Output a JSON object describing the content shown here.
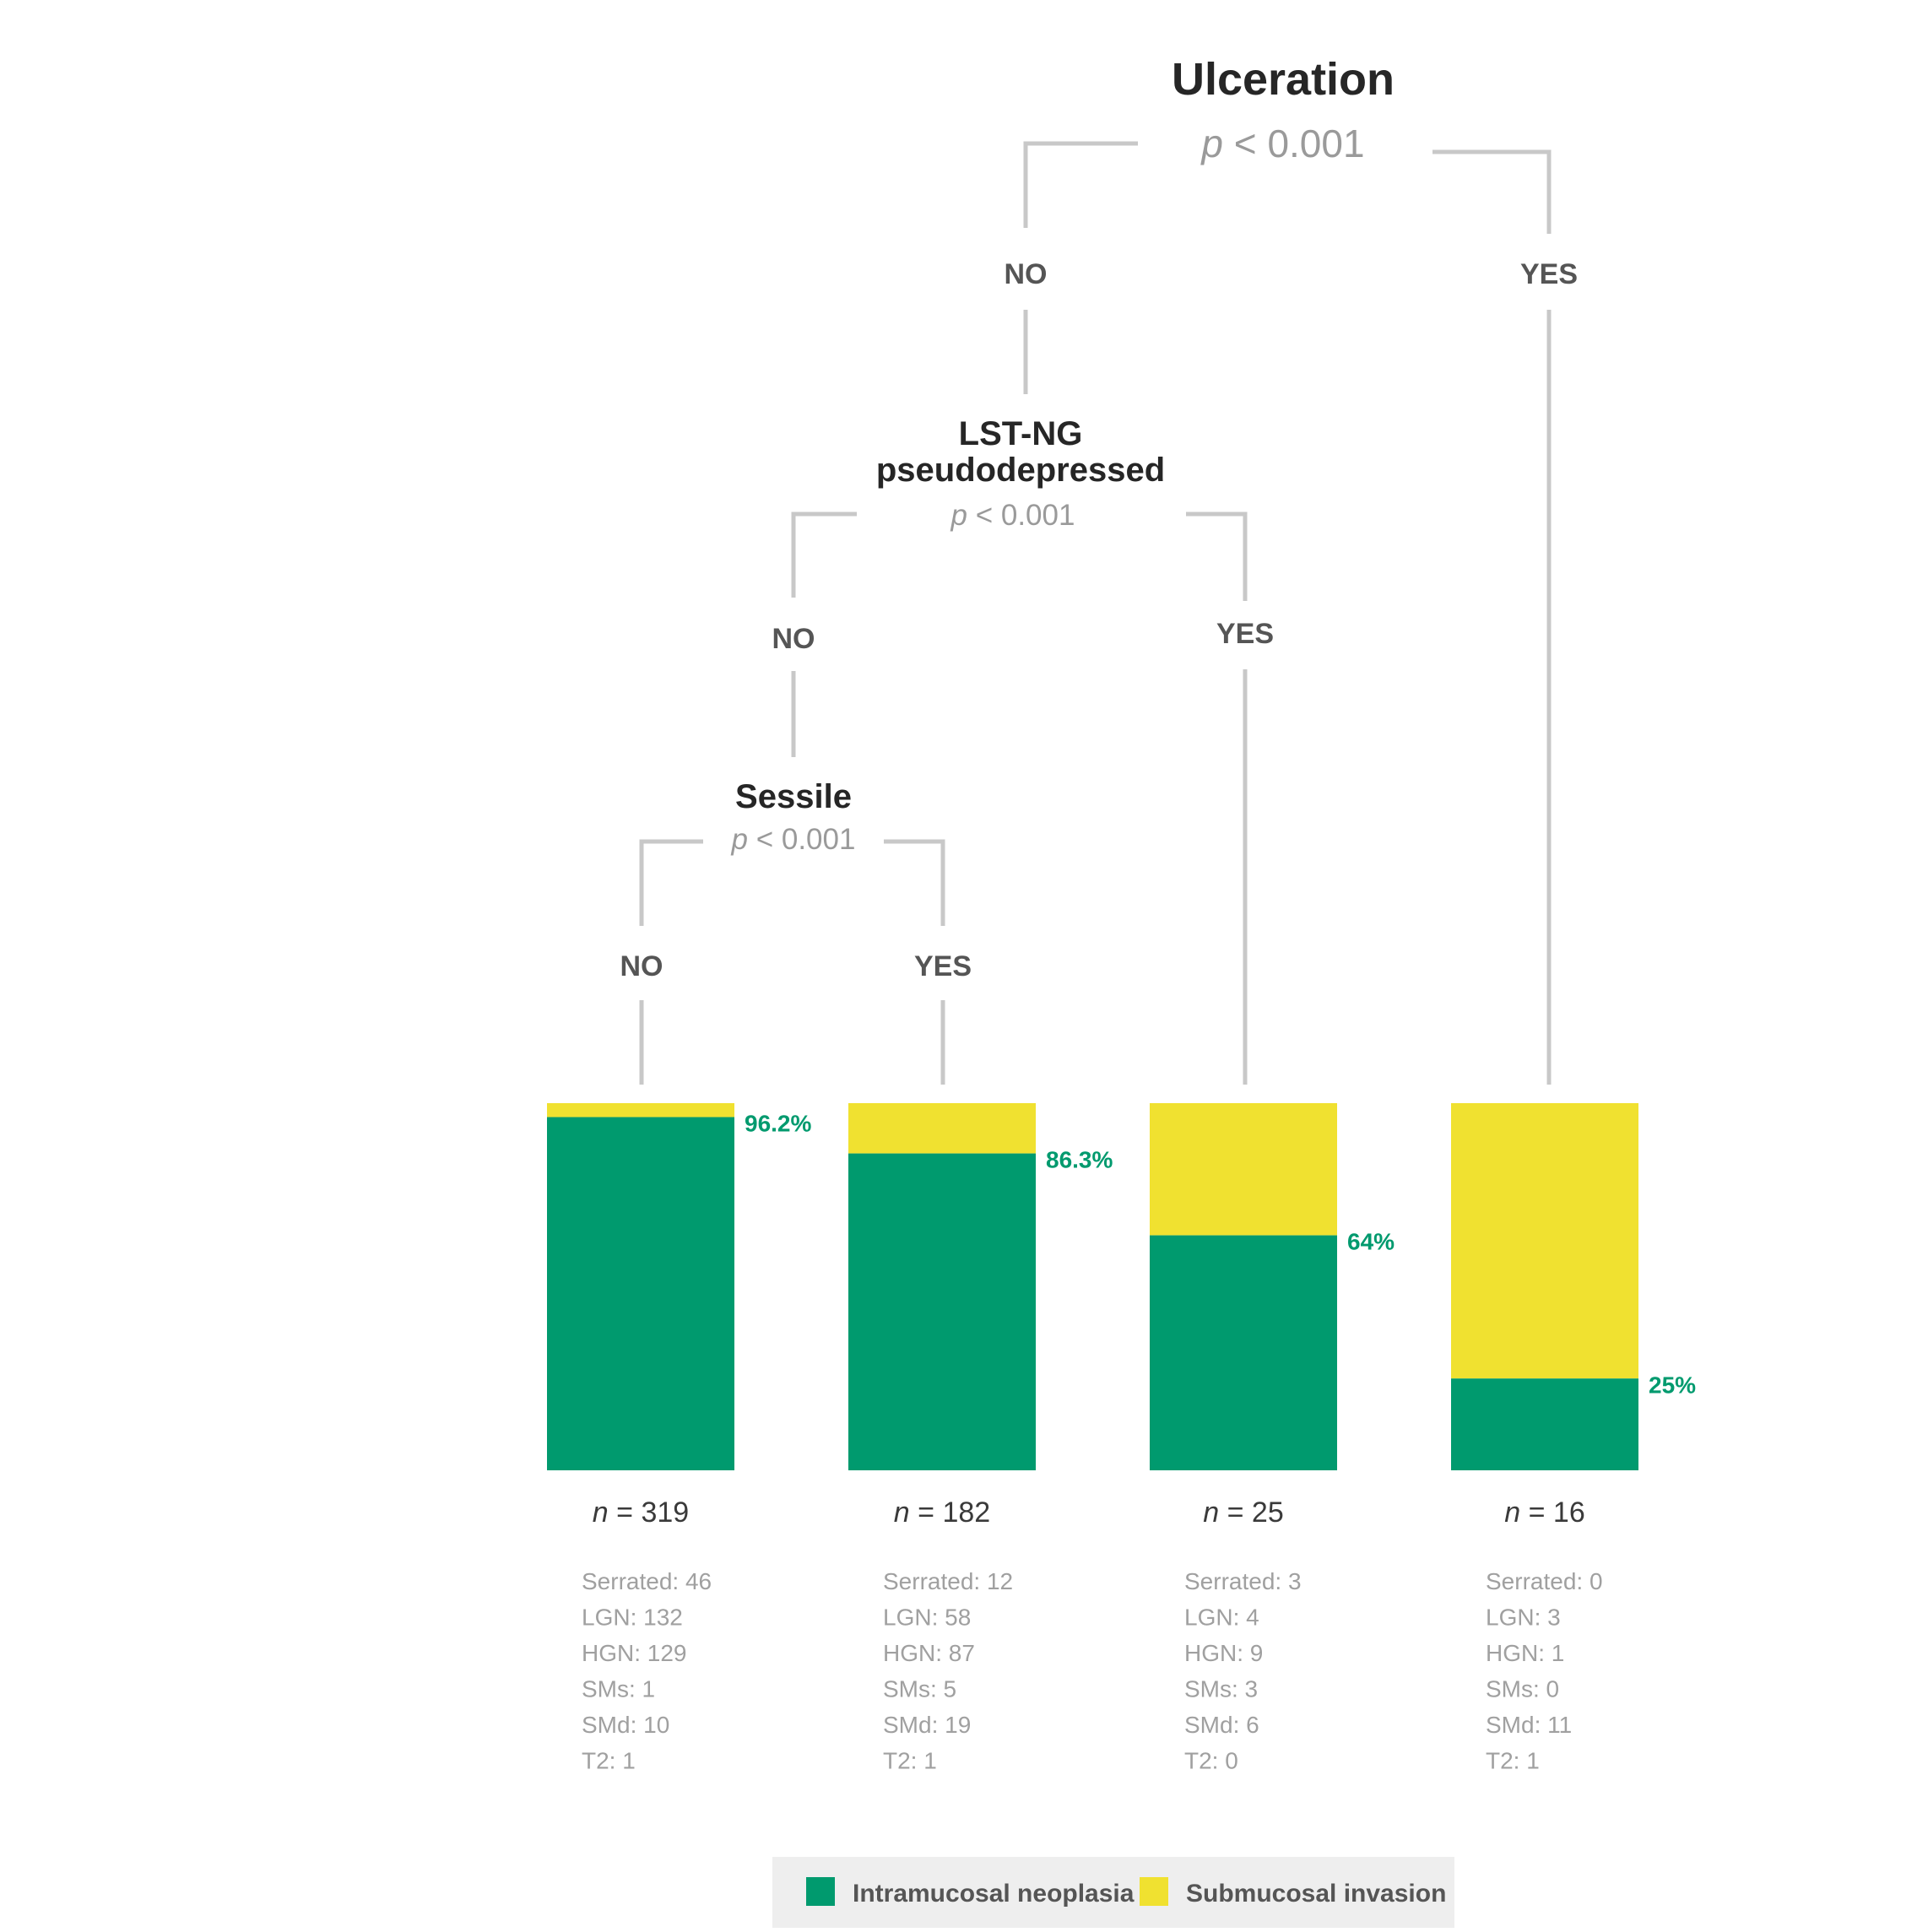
{
  "colors": {
    "intramucosal": "#009a6e",
    "submucosal": "#f0e130",
    "connector": "#c8c8c8",
    "legend_bg": "#eeeeee"
  },
  "tree": {
    "root": {
      "title": "Ulceration",
      "pvalue_italic": "p",
      "pvalue_rest": " < 0.001"
    },
    "root_no": "NO",
    "root_yes": "YES",
    "lst": {
      "title_line1": "LST-NG",
      "title_line2": "pseudodepressed",
      "pvalue_italic": "p",
      "pvalue_rest": " < 0.001"
    },
    "lst_no": "NO",
    "lst_yes": "YES",
    "sessile": {
      "title": "Sessile",
      "pvalue_italic": "p",
      "pvalue_rest": " < 0.001"
    },
    "sessile_no": "NO",
    "sessile_yes": "YES"
  },
  "chart_data": {
    "type": "bar",
    "stacked": true,
    "categories": [
      "n = 319",
      "n = 182",
      "n = 25",
      "n = 16"
    ],
    "series": [
      {
        "name": "Intramucosal neoplasia",
        "values": [
          96.2,
          86.3,
          64,
          25
        ]
      },
      {
        "name": "Submucosal invasion",
        "values": [
          3.8,
          13.7,
          36,
          75
        ]
      }
    ],
    "ylim": [
      0,
      100
    ]
  },
  "leaves": [
    {
      "n_italic": "n",
      "n_rest": " = 319",
      "pct": "96.2%",
      "details": [
        "Serrated: 46",
        "LGN: 132",
        "HGN: 129",
        "SMs: 1",
        "SMd: 10",
        "T2: 1"
      ]
    },
    {
      "n_italic": "n",
      "n_rest": " = 182",
      "pct": "86.3%",
      "details": [
        "Serrated: 12",
        "LGN: 58",
        "HGN: 87",
        "SMs: 5",
        "SMd: 19",
        "T2: 1"
      ]
    },
    {
      "n_italic": "n",
      "n_rest": " = 25",
      "pct": "64%",
      "details": [
        "Serrated: 3",
        "LGN: 4",
        "HGN: 9",
        "SMs: 3",
        "SMd: 6",
        "T2: 0"
      ]
    },
    {
      "n_italic": "n",
      "n_rest": " = 16",
      "pct": "25%",
      "details": [
        "Serrated: 0",
        "LGN: 3",
        "HGN: 1",
        "SMs: 0",
        "SMd: 11",
        "T2: 1"
      ]
    }
  ],
  "legend": [
    {
      "label": "Intramucosal neoplasia",
      "color": "#009a6e"
    },
    {
      "label": "Submucosal invasion",
      "color": "#f0e130"
    }
  ]
}
